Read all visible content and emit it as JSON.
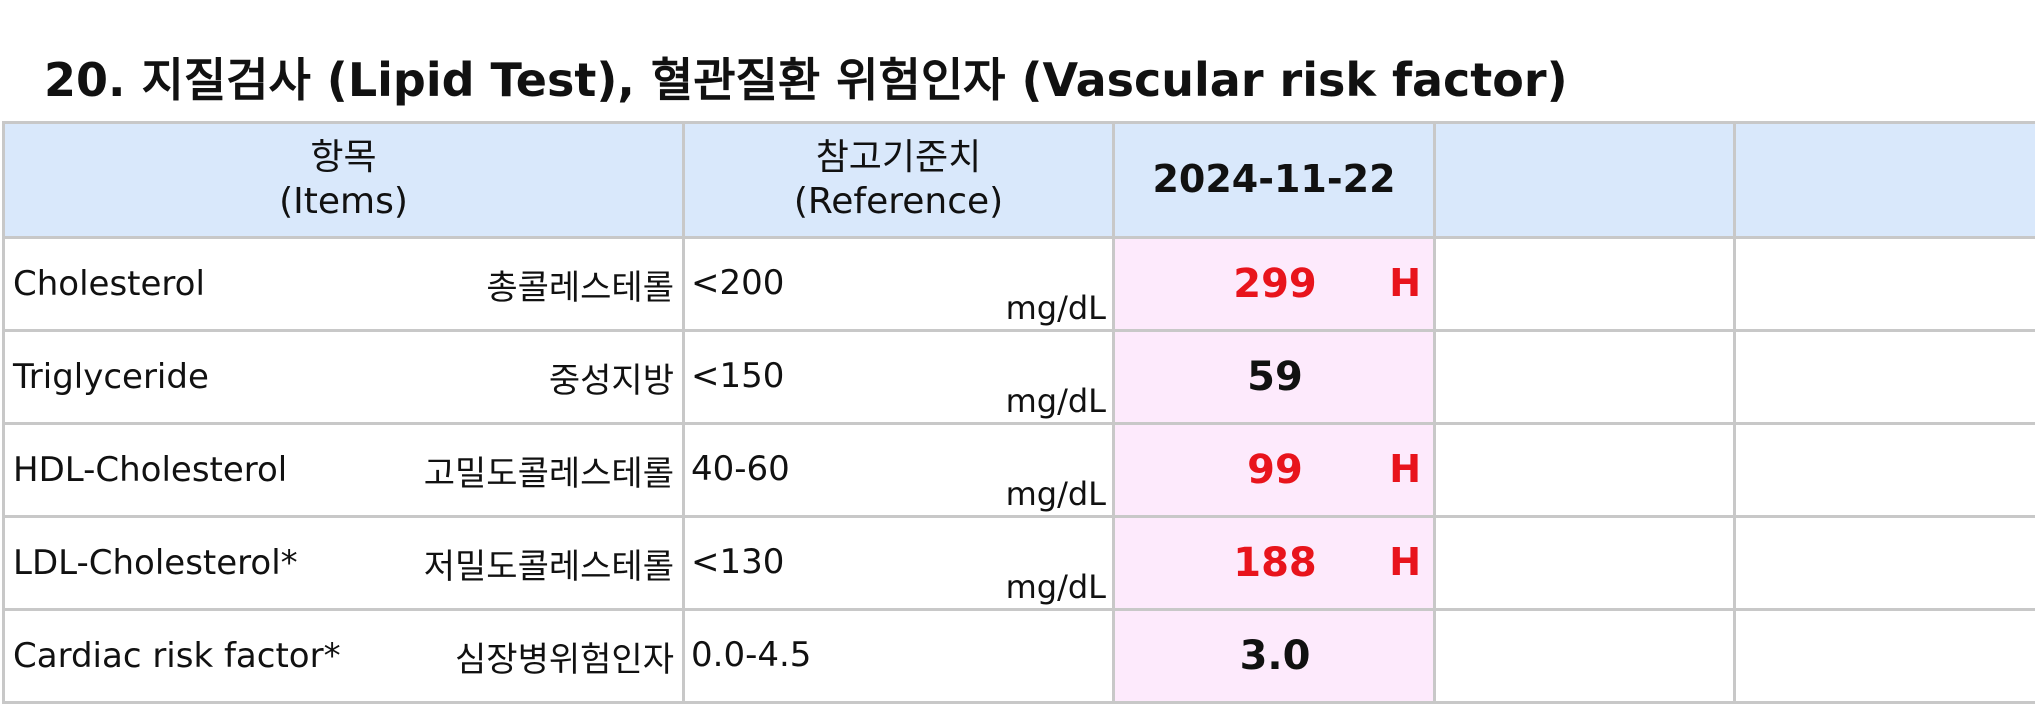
{
  "section": {
    "title": "20. 지질검사 (Lipid Test), 혈관질환 위험인자 (Vascular risk factor)"
  },
  "table": {
    "headers": {
      "items_ko": "항목",
      "items_en": "(Items)",
      "reference_ko": "참고기준치",
      "reference_en": "(Reference)",
      "date": "2024-11-22",
      "extra1": "",
      "extra2": ""
    },
    "rows": [
      {
        "name_en": "Cholesterol",
        "name_ko": "총콜레스테롤",
        "range": "<200",
        "unit": "mg/dL",
        "value": "299",
        "flag": "H"
      },
      {
        "name_en": "Triglyceride",
        "name_ko": "중성지방",
        "range": "<150",
        "unit": "mg/dL",
        "value": "59",
        "flag": ""
      },
      {
        "name_en": "HDL-Cholesterol",
        "name_ko": "고밀도콜레스테롤",
        "range": "40-60",
        "unit": "mg/dL",
        "value": "99",
        "flag": "H"
      },
      {
        "name_en": "LDL-Cholesterol*",
        "name_ko": "저밀도콜레스테롤",
        "range": "<130",
        "unit": "mg/dL",
        "value": "188",
        "flag": "H"
      },
      {
        "name_en": "Cardiac risk factor*",
        "name_ko": "심장병위험인자",
        "range": "0.0-4.5",
        "unit": "",
        "value": "3.0",
        "flag": ""
      }
    ]
  },
  "colors": {
    "header_bg": "#d9e8fb",
    "result_bg": "#fdeafc",
    "high_flag": "#e8141c",
    "grid": "#c8c8c8"
  }
}
